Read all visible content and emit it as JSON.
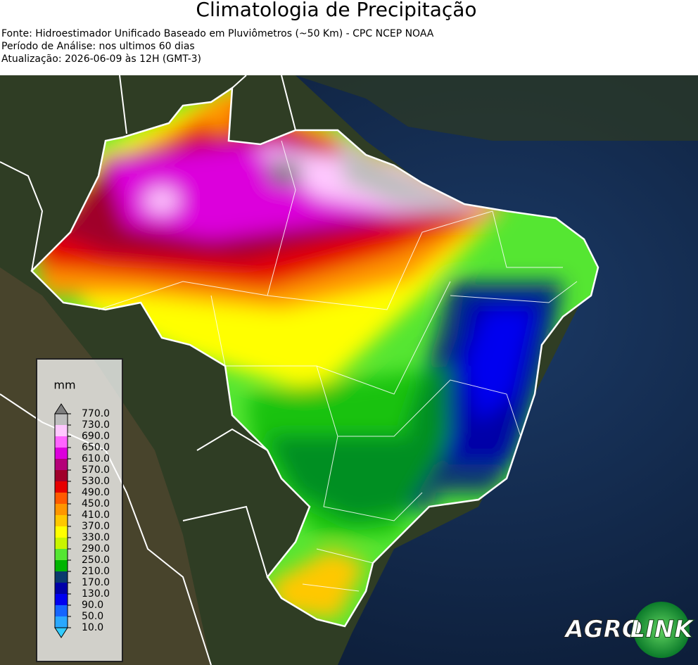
{
  "header": {
    "title": "Climatologia de Precipitação",
    "lines": [
      "Fonte: Hidroestimador Unificado Baseado em Pluviômetros (~50 Km) - CPC NCEP NOAA",
      "Período de Análise: nos ultimos 60 dias",
      "Atualização: 2026-06-09 às 12H (GMT-3)"
    ]
  },
  "colorbar": {
    "unit": "mm",
    "ticks": [
      {
        "value": 10,
        "label": "10.0"
      },
      {
        "value": 50,
        "label": "50.0"
      },
      {
        "value": 90,
        "label": "90.0"
      },
      {
        "value": 130,
        "label": "130.0"
      },
      {
        "value": 170,
        "label": "170.0"
      },
      {
        "value": 210,
        "label": "210.0"
      },
      {
        "value": 250,
        "label": "250.0"
      },
      {
        "value": 290,
        "label": "290.0"
      },
      {
        "value": 330,
        "label": "330.0"
      },
      {
        "value": 370,
        "label": "370.0"
      },
      {
        "value": 410,
        "label": "410.0"
      },
      {
        "value": 450,
        "label": "450.0"
      },
      {
        "value": 490,
        "label": "490.0"
      },
      {
        "value": 530,
        "label": "530.0"
      },
      {
        "value": 570,
        "label": "570.0"
      },
      {
        "value": 610,
        "label": "610.0"
      },
      {
        "value": 650,
        "label": "650.0"
      },
      {
        "value": 690,
        "label": "690.0"
      },
      {
        "value": 730,
        "label": "730.0"
      },
      {
        "value": 770,
        "label": "770.0"
      }
    ],
    "colors": [
      "#2aa8ff",
      "#1565ff",
      "#0000f0",
      "#0000a8",
      "#0a3a6e",
      "#00b400",
      "#55e632",
      "#c8f500",
      "#ffff00",
      "#ffc800",
      "#ff9600",
      "#ff5a00",
      "#e60000",
      "#a0002a",
      "#b40078",
      "#dc00dc",
      "#ff64ff",
      "#ffc8ff",
      "#bebebe"
    ],
    "under_color": "#33ccff",
    "over_color": "#808080"
  },
  "logo": {
    "text1": "AGRO",
    "text2": "LINK"
  }
}
